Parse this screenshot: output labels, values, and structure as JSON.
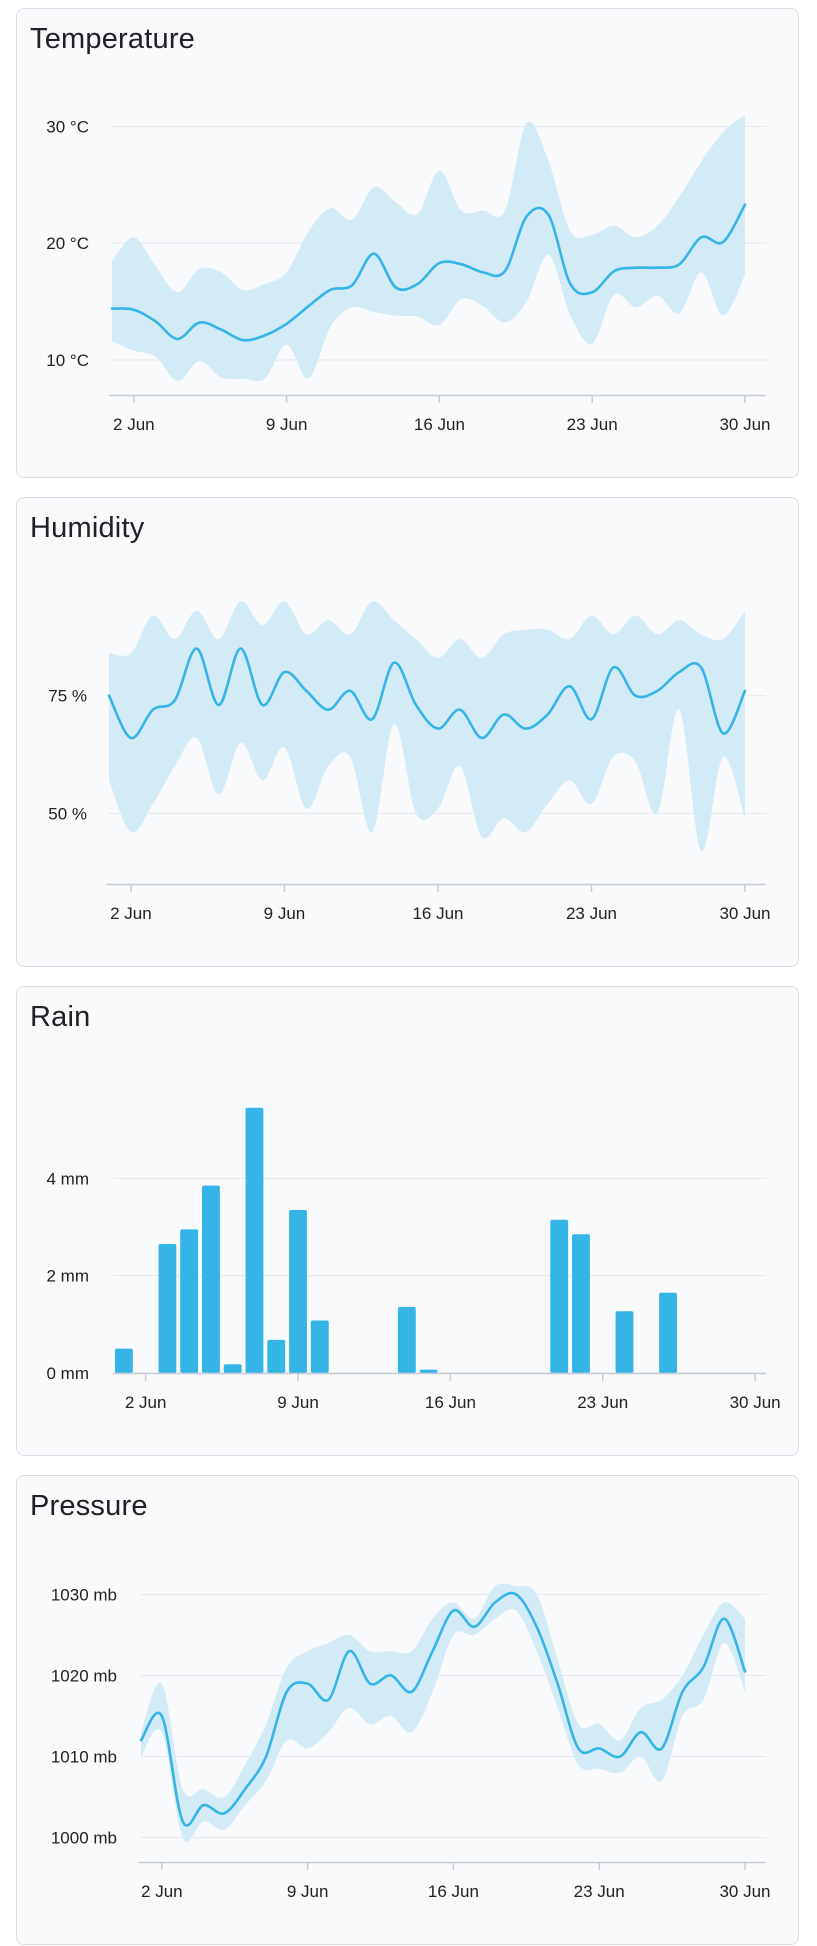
{
  "colors": {
    "line": "#35b4e6",
    "band": "#d3ebf7",
    "bar": "#35b4e6",
    "grid": "#e4e7eb",
    "axis": "#c7ccd2"
  },
  "chart_data": [
    {
      "id": "temperature",
      "type": "line",
      "title": "Temperature",
      "x": [
        1,
        2,
        3,
        4,
        5,
        6,
        7,
        8,
        9,
        10,
        11,
        12,
        13,
        14,
        15,
        16,
        17,
        18,
        19,
        20,
        21,
        22,
        23,
        24,
        25,
        26,
        27,
        28,
        29,
        30
      ],
      "xticks": [
        "2 Jun",
        "9 Jun",
        "16 Jun",
        "23 Jun",
        "30 Jun"
      ],
      "xtick_days": [
        2,
        9,
        16,
        23,
        30
      ],
      "xlim": [
        1,
        30
      ],
      "yticks": [
        "10 °C",
        "20 °C",
        "30 °C"
      ],
      "ytick_values": [
        10,
        20,
        30
      ],
      "ylim": [
        7,
        32
      ],
      "series": [
        {
          "values": [
            14.4,
            14.3,
            13.3,
            11.8,
            13.2,
            12.6,
            11.7,
            12.1,
            13.1,
            14.6,
            16.0,
            16.4,
            19.1,
            16.2,
            16.5,
            18.3,
            18.2,
            17.5,
            17.6,
            22.3,
            22.4,
            16.5,
            15.8,
            17.6,
            17.9,
            17.9,
            18.2,
            20.5,
            20.1,
            23.3
          ]
        }
      ],
      "band": {
        "low": [
          11.6,
          10.8,
          10.3,
          8.2,
          9.9,
          8.5,
          8.4,
          8.4,
          11.3,
          8.4,
          12.8,
          14.5,
          14.1,
          13.8,
          13.7,
          13.0,
          15.2,
          14.6,
          13.2,
          15.0,
          19.0,
          13.8,
          11.4,
          15.6,
          14.5,
          15.5,
          14.0,
          17.5,
          13.8,
          17.3
        ],
        "high": [
          18.5,
          20.5,
          18.0,
          15.8,
          17.8,
          17.5,
          16.0,
          16.5,
          17.5,
          21.0,
          23.0,
          22.0,
          24.8,
          23.5,
          22.5,
          26.2,
          22.8,
          22.8,
          22.8,
          30.3,
          27.0,
          21.0,
          20.7,
          21.5,
          20.5,
          21.5,
          24.0,
          27.0,
          29.5,
          31.0
        ]
      }
    },
    {
      "id": "humidity",
      "type": "line",
      "title": "Humidity",
      "x": [
        1,
        2,
        3,
        4,
        5,
        6,
        7,
        8,
        9,
        10,
        11,
        12,
        13,
        14,
        15,
        16,
        17,
        18,
        19,
        20,
        21,
        22,
        23,
        24,
        25,
        26,
        27,
        28,
        29,
        30
      ],
      "xticks": [
        "2 Jun",
        "9 Jun",
        "16 Jun",
        "23 Jun",
        "30 Jun"
      ],
      "xtick_days": [
        2,
        9,
        16,
        23,
        30
      ],
      "xlim": [
        1,
        30
      ],
      "yticks": [
        "50 %",
        "75 %"
      ],
      "ytick_values": [
        50,
        75
      ],
      "ylim": [
        35,
        97
      ],
      "series": [
        {
          "values": [
            75,
            66,
            72,
            74,
            85,
            73,
            85,
            73,
            80,
            76,
            72,
            76,
            70,
            82,
            73,
            68,
            72,
            66,
            71,
            68,
            71,
            77,
            70,
            81,
            75,
            76,
            80,
            81,
            67,
            76
          ]
        }
      ],
      "band": {
        "low": [
          57,
          46,
          52,
          60,
          66,
          54,
          65,
          57,
          64,
          51,
          60,
          62,
          46,
          69,
          50,
          51,
          60,
          45,
          49,
          46,
          52,
          57,
          52,
          62,
          61,
          50,
          72,
          42,
          62,
          49
        ],
        "high": [
          84,
          84,
          92,
          87,
          93,
          87,
          95,
          90,
          95,
          88,
          91,
          88,
          95,
          91,
          87,
          83,
          87,
          83,
          88,
          89,
          89,
          87,
          92,
          88,
          92,
          88,
          91,
          88,
          87,
          93
        ]
      }
    },
    {
      "id": "rain",
      "type": "bar",
      "title": "Rain",
      "x": [
        1,
        2,
        3,
        4,
        5,
        6,
        7,
        8,
        9,
        10,
        11,
        12,
        13,
        14,
        15,
        16,
        17,
        18,
        19,
        20,
        21,
        22,
        23,
        24,
        25,
        26,
        27,
        28,
        29,
        30
      ],
      "xticks": [
        "2 Jun",
        "9 Jun",
        "16 Jun",
        "23 Jun",
        "30 Jun"
      ],
      "xtick_days": [
        2,
        9,
        16,
        23,
        30
      ],
      "xlim": [
        0.5,
        30.5
      ],
      "yticks": [
        "0 mm",
        "2 mm",
        "4 mm"
      ],
      "ytick_values": [
        0,
        2,
        4
      ],
      "ylim": [
        0,
        6
      ],
      "values": [
        0.5,
        0,
        2.65,
        2.95,
        3.85,
        0.18,
        5.45,
        0.68,
        3.35,
        1.08,
        0,
        0,
        0,
        1.36,
        0.07,
        0,
        0,
        0,
        0,
        0,
        3.15,
        2.85,
        0,
        1.27,
        0,
        1.65,
        0,
        0,
        0,
        0
      ]
    },
    {
      "id": "pressure",
      "type": "line",
      "title": "Pressure",
      "x": [
        1,
        2,
        3,
        4,
        5,
        6,
        7,
        8,
        9,
        10,
        11,
        12,
        13,
        14,
        15,
        16,
        17,
        18,
        19,
        20,
        21,
        22,
        23,
        24,
        25,
        26,
        27,
        28,
        29,
        30
      ],
      "xticks": [
        "2 Jun",
        "9 Jun",
        "16 Jun",
        "23 Jun",
        "30 Jun"
      ],
      "xtick_days": [
        2,
        9,
        16,
        23,
        30
      ],
      "xlim": [
        1,
        30
      ],
      "yticks": [
        "1000 mb",
        "1010 mb",
        "1020 mb",
        "1030 mb"
      ],
      "ytick_values": [
        1000,
        1010,
        1020,
        1030
      ],
      "ylim": [
        997,
        1033
      ],
      "series": [
        {
          "values": [
            1012,
            1015,
            1002,
            1004,
            1003,
            1006,
            1010,
            1018,
            1019,
            1017,
            1023,
            1019,
            1020,
            1018,
            1023,
            1028,
            1026,
            1029,
            1030,
            1026,
            1019,
            1011,
            1011,
            1010,
            1013,
            1011,
            1018,
            1021,
            1027,
            1020.5
          ]
        }
      ],
      "band": {
        "low": [
          1010,
          1013,
          1000,
          1002,
          1001,
          1004,
          1007,
          1012,
          1011,
          1013,
          1016,
          1014,
          1015,
          1013,
          1018,
          1025,
          1025,
          1027,
          1028,
          1023,
          1016,
          1009,
          1008.5,
          1008,
          1010,
          1007,
          1015,
          1017,
          1024,
          1018
        ],
        "high": [
          1013,
          1019,
          1006,
          1006,
          1005,
          1009,
          1014,
          1021,
          1023,
          1024,
          1025,
          1023,
          1023,
          1023,
          1027,
          1029,
          1027,
          1031,
          1031,
          1030,
          1022,
          1014,
          1014,
          1012,
          1016,
          1017,
          1020,
          1025,
          1029,
          1027
        ]
      }
    }
  ]
}
